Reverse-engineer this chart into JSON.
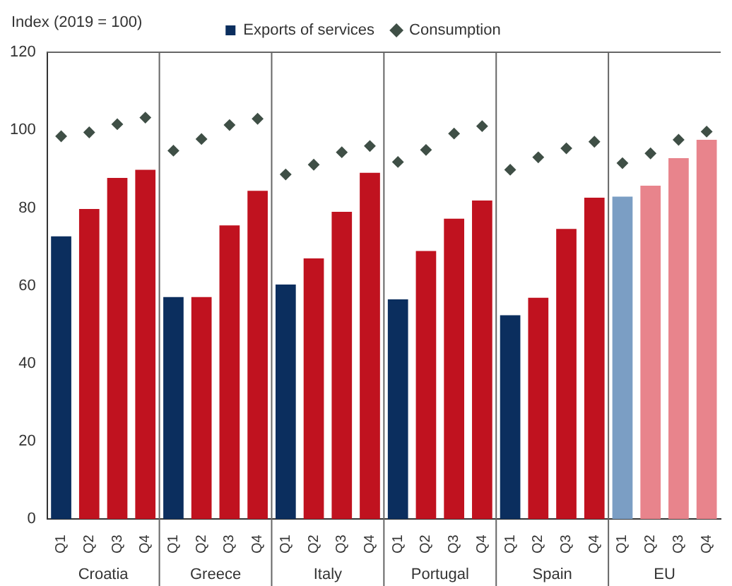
{
  "chart_data": {
    "type": "bar",
    "ylabel": "Index (2019 = 100)",
    "categories": [
      "Q1",
      "Q2",
      "Q3",
      "Q4",
      "Q1",
      "Q2",
      "Q3",
      "Q4",
      "Q1",
      "Q2",
      "Q3",
      "Q4",
      "Q1",
      "Q2",
      "Q3",
      "Q4",
      "Q1",
      "Q2",
      "Q3",
      "Q4",
      "Q1",
      "Q2",
      "Q3",
      "Q4"
    ],
    "annotations": [
      "Croatia",
      "Greece",
      "Italy",
      "Portugal",
      "Spain",
      "EU"
    ],
    "series": [
      {
        "name": "Exports of services",
        "colors": [
          "#0b2e5e",
          "#c0121f",
          "#c0121f",
          "#c0121f",
          "#0b2e5e",
          "#c0121f",
          "#c0121f",
          "#c0121f",
          "#0b2e5e",
          "#c0121f",
          "#c0121f",
          "#c0121f",
          "#0b2e5e",
          "#c0121f",
          "#c0121f",
          "#c0121f",
          "#0b2e5e",
          "#c0121f",
          "#c0121f",
          "#c0121f",
          "#7b9ec4",
          "#e8848c",
          "#e8848c",
          "#e8848c"
        ],
        "values": [
          72.7,
          79.7,
          87.7,
          89.8,
          57.1,
          57.1,
          75.5,
          84.4,
          60.3,
          67,
          79,
          89,
          56.5,
          68.9,
          77.2,
          81.9,
          52.4,
          56.9,
          74.6,
          82.6,
          82.9,
          85.7,
          92.8,
          97.5
        ]
      },
      {
        "name": "Consumption",
        "type": "scatter",
        "color": "#3f4f46",
        "marker": "diamond",
        "values": [
          98.4,
          99.4,
          101.5,
          103.2,
          94.7,
          97.7,
          101.3,
          102.9,
          88.6,
          91.1,
          94.3,
          95.9,
          91.8,
          94.9,
          99.1,
          101,
          89.8,
          93,
          95.3,
          97,
          91.5,
          94,
          97.5,
          99.6
        ]
      }
    ],
    "ylim": [
      0,
      120
    ],
    "yticks": [
      0,
      20,
      40,
      60,
      80,
      100,
      120
    ],
    "grid": false,
    "legend": "top"
  }
}
